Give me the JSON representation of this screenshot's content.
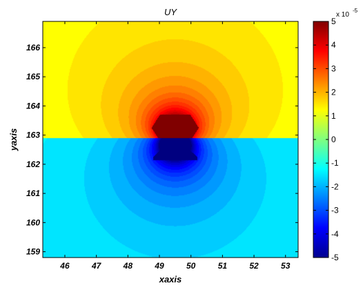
{
  "chart_data": {
    "type": "heatmap",
    "title": "UY",
    "xlabel": "xaxis",
    "ylabel": "yaxis",
    "xlim": [
      45.3,
      53.4
    ],
    "ylim": [
      158.8,
      166.9
    ],
    "x_ticks": [
      46,
      47,
      48,
      49,
      50,
      51,
      52,
      53
    ],
    "y_ticks": [
      159,
      160,
      161,
      162,
      163,
      164,
      165,
      166
    ],
    "colormap": "jet",
    "colorbar": {
      "range": [
        -5,
        5
      ],
      "ticks": [
        -5,
        -4,
        -3,
        -2,
        -1,
        0,
        1,
        2,
        3,
        4,
        5
      ],
      "exponent_label": "x 10",
      "exponent": "-5"
    },
    "interface_y": 162.9,
    "source_x": 49.5,
    "field": {
      "description_free": true,
      "positive_half": "above interface",
      "negative_half": "below interface"
    }
  }
}
